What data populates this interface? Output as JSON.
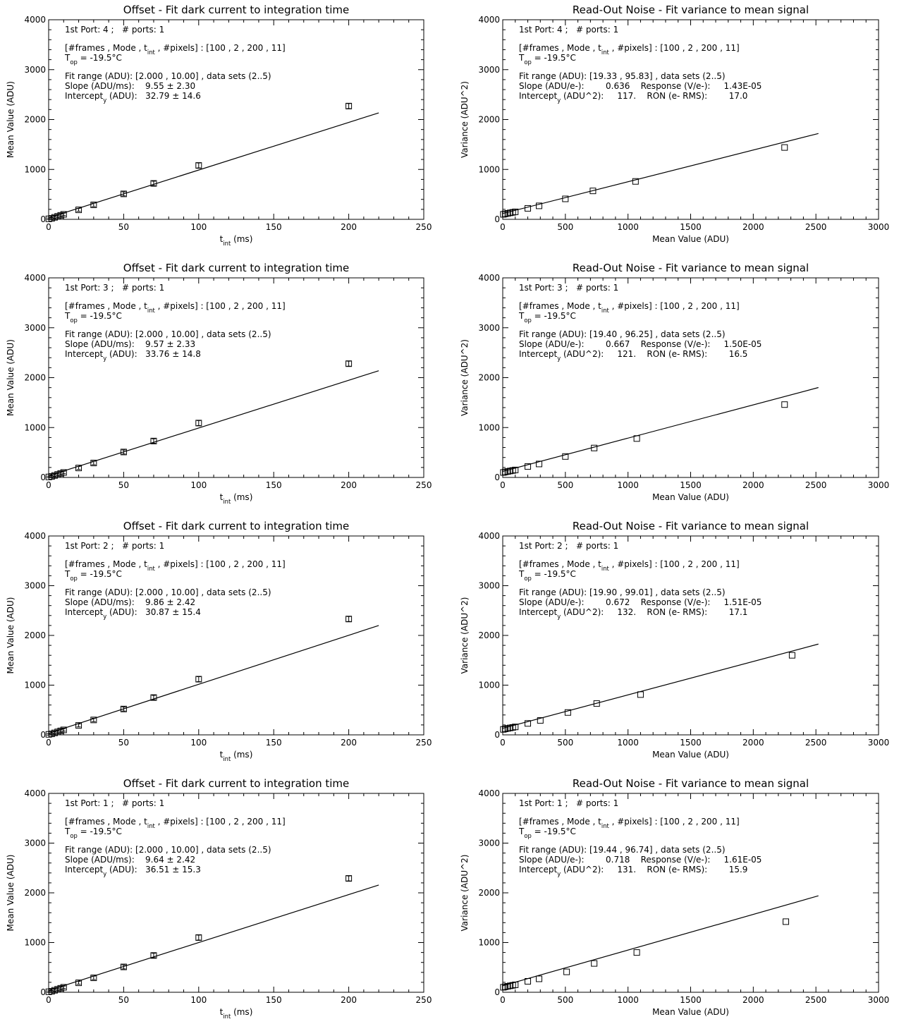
{
  "chart_data": [
    {
      "type": "scatter",
      "title": "Offset - Fit dark current to integration time",
      "xlabel": "t_int (ms)",
      "ylabel": "Mean Value (ADU)",
      "xlim": [
        0,
        250
      ],
      "ylim": [
        0,
        4000
      ],
      "xticks": [
        "0",
        "50",
        "100",
        "150",
        "200",
        "250"
      ],
      "yticks": [
        "0",
        "1000",
        "2000",
        "3000",
        "4000"
      ],
      "annotations": [
        "1st Port: 4 ;   # ports: 1",
        "[#frames , Mode , t_int , #pixels] : [100 , 2 , 200 , 11]",
        "T_op = -19.5°C",
        "Fit range (ADU): [2.000 , 10.00] , data sets (2..5)",
        "Slope (ADU/ms):    9.55 ± 2.30",
        "Intercept_y (ADU):   32.79 ± 14.6"
      ],
      "series": [
        {
          "x": [
            0.1,
            2,
            4,
            6,
            8,
            10,
            20,
            30,
            50,
            70,
            100,
            200
          ],
          "y": [
            10,
            20,
            40,
            60,
            80,
            100,
            190,
            290,
            510,
            720,
            1080,
            2270
          ],
          "error": [
            15,
            15,
            20,
            20,
            25,
            25,
            30,
            35,
            40,
            45,
            50,
            50
          ],
          "marker": "square"
        },
        {
          "type": "line",
          "x": [
            0,
            220
          ],
          "y": [
            32.79,
            2133.8
          ]
        }
      ]
    },
    {
      "type": "scatter",
      "title": "Read-Out Noise - Fit variance to mean signal",
      "xlabel": "Mean Value (ADU)",
      "ylabel": "Variance (ADU^2)",
      "xlim": [
        0,
        3000
      ],
      "ylim": [
        0,
        4000
      ],
      "xticks": [
        "0",
        "500",
        "1000",
        "1500",
        "2000",
        "2500",
        "3000"
      ],
      "yticks": [
        "0",
        "1000",
        "2000",
        "3000",
        "4000"
      ],
      "annotations": [
        "1st Port: 4 ;   # ports: 1",
        "[#frames , Mode , t_int , #pixels] : [100 , 2 , 200 , 11]",
        "T_op = -19.5°C",
        "Fit range (ADU): [19.33 , 95.83] , data sets (2..5)",
        "Slope (ADU/e-):        0.636    Response (V/e-):     1.43E-05",
        "Intercept_y (ADU^2):     117.    RON (e- RMS):        17.0"
      ],
      "series": [
        {
          "x": [
            5,
            20,
            40,
            60,
            80,
            100,
            200,
            290,
            500,
            720,
            1060,
            2250
          ],
          "y": [
            100,
            110,
            120,
            130,
            140,
            150,
            220,
            270,
            410,
            570,
            760,
            1440
          ],
          "marker": "square"
        },
        {
          "type": "line",
          "x": [
            0,
            2520
          ],
          "y": [
            117,
            1720
          ]
        }
      ]
    },
    {
      "type": "scatter",
      "title": "Offset - Fit dark current to integration time",
      "xlabel": "t_int (ms)",
      "ylabel": "Mean Value (ADU)",
      "xlim": [
        0,
        250
      ],
      "ylim": [
        0,
        4000
      ],
      "xticks": [
        "0",
        "50",
        "100",
        "150",
        "200",
        "250"
      ],
      "yticks": [
        "0",
        "1000",
        "2000",
        "3000",
        "4000"
      ],
      "annotations": [
        "1st Port: 3 ;   # ports: 1",
        "[#frames , Mode , t_int , #pixels] : [100 , 2 , 200 , 11]",
        "T_op = -19.5°C",
        "Fit range (ADU): [2.000 , 10.00] , data sets (2..5)",
        "Slope (ADU/ms):    9.57 ± 2.33",
        "Intercept_y (ADU):   33.76 ± 14.8"
      ],
      "series": [
        {
          "x": [
            0.1,
            2,
            4,
            6,
            8,
            10,
            20,
            30,
            50,
            70,
            100,
            200
          ],
          "y": [
            10,
            20,
            40,
            60,
            80,
            100,
            190,
            290,
            510,
            730,
            1090,
            2280
          ],
          "error": [
            15,
            15,
            20,
            20,
            25,
            25,
            30,
            35,
            40,
            45,
            50,
            50
          ],
          "marker": "square"
        },
        {
          "type": "line",
          "x": [
            0,
            220
          ],
          "y": [
            33.76,
            2139.2
          ]
        }
      ]
    },
    {
      "type": "scatter",
      "title": "Read-Out Noise - Fit variance to mean signal",
      "xlabel": "Mean Value (ADU)",
      "ylabel": "Variance (ADU^2)",
      "xlim": [
        0,
        3000
      ],
      "ylim": [
        0,
        4000
      ],
      "xticks": [
        "0",
        "500",
        "1000",
        "1500",
        "2000",
        "2500",
        "3000"
      ],
      "yticks": [
        "0",
        "1000",
        "2000",
        "3000",
        "4000"
      ],
      "annotations": [
        "1st Port: 3 ;   # ports: 1",
        "[#frames , Mode , t_int , #pixels] : [100 , 2 , 200 , 11]",
        "T_op = -19.5°C",
        "Fit range (ADU): [19.40 , 96.25] , data sets (2..5)",
        "Slope (ADU/e-):        0.667    Response (V/e-):     1.50E-05",
        "Intercept_y (ADU^2):     121.    RON (e- RMS):        16.5"
      ],
      "series": [
        {
          "x": [
            5,
            20,
            40,
            60,
            80,
            100,
            200,
            290,
            500,
            730,
            1070,
            2250
          ],
          "y": [
            100,
            110,
            120,
            130,
            140,
            150,
            220,
            270,
            420,
            590,
            780,
            1460
          ],
          "marker": "square"
        },
        {
          "type": "line",
          "x": [
            0,
            2520
          ],
          "y": [
            121,
            1802
          ]
        }
      ]
    },
    {
      "type": "scatter",
      "title": "Offset - Fit dark current to integration time",
      "xlabel": "t_int (ms)",
      "ylabel": "Mean Value (ADU)",
      "xlim": [
        0,
        250
      ],
      "ylim": [
        0,
        4000
      ],
      "xticks": [
        "0",
        "50",
        "100",
        "150",
        "200",
        "250"
      ],
      "yticks": [
        "0",
        "1000",
        "2000",
        "3000",
        "4000"
      ],
      "annotations": [
        "1st Port: 2 ;   # ports: 1",
        "[#frames , Mode , t_int , #pixels] : [100 , 2 , 200 , 11]",
        "T_op = -19.5°C",
        "Fit range (ADU): [2.000 , 10.00] , data sets (2..5)",
        "Slope (ADU/ms):    9.86 ± 2.42",
        "Intercept_y (ADU):   30.87 ± 15.4"
      ],
      "series": [
        {
          "x": [
            0.1,
            2,
            4,
            6,
            8,
            10,
            20,
            30,
            50,
            70,
            100,
            200
          ],
          "y": [
            10,
            20,
            40,
            60,
            80,
            100,
            190,
            300,
            520,
            750,
            1120,
            2330
          ],
          "error": [
            15,
            15,
            20,
            20,
            25,
            25,
            30,
            35,
            40,
            45,
            50,
            50
          ],
          "marker": "square"
        },
        {
          "type": "line",
          "x": [
            0,
            220
          ],
          "y": [
            30.87,
            2200
          ]
        }
      ]
    },
    {
      "type": "scatter",
      "title": "Read-Out Noise - Fit variance to mean signal",
      "xlabel": "Mean Value (ADU)",
      "ylabel": "Variance (ADU^2)",
      "xlim": [
        0,
        3000
      ],
      "ylim": [
        0,
        4000
      ],
      "xticks": [
        "0",
        "500",
        "1000",
        "1500",
        "2000",
        "2500",
        "3000"
      ],
      "yticks": [
        "0",
        "1000",
        "2000",
        "3000",
        "4000"
      ],
      "annotations": [
        "1st Port: 2 ;   # ports: 1",
        "[#frames , Mode , t_int , #pixels] : [100 , 2 , 200 , 11]",
        "T_op = -19.5°C",
        "Fit range (ADU): [19.90 , 99.01] , data sets (2..5)",
        "Slope (ADU/e-):        0.672    Response (V/e-):     1.51E-05",
        "Intercept_y (ADU^2):     132.    RON (e- RMS):        17.1"
      ],
      "series": [
        {
          "x": [
            5,
            20,
            40,
            60,
            80,
            100,
            200,
            300,
            520,
            750,
            1100,
            2310
          ],
          "y": [
            110,
            120,
            130,
            140,
            150,
            160,
            230,
            290,
            450,
            630,
            810,
            1600
          ],
          "marker": "square"
        },
        {
          "type": "line",
          "x": [
            0,
            2520
          ],
          "y": [
            132,
            1826
          ]
        }
      ]
    },
    {
      "type": "scatter",
      "title": "Offset - Fit dark current to integration time",
      "xlabel": "t_int (ms)",
      "ylabel": "Mean Value (ADU)",
      "xlim": [
        0,
        250
      ],
      "ylim": [
        0,
        4000
      ],
      "xticks": [
        "0",
        "50",
        "100",
        "150",
        "200",
        "250"
      ],
      "yticks": [
        "0",
        "1000",
        "2000",
        "3000",
        "4000"
      ],
      "annotations": [
        "1st Port: 1 ;   # ports: 1",
        "[#frames , Mode , t_int , #pixels] : [100 , 2 , 200 , 11]",
        "T_op = -19.5°C",
        "Fit range (ADU): [2.000 , 10.00] , data sets (2..5)",
        "Slope (ADU/ms):    9.64 ± 2.42",
        "Intercept_y (ADU):   36.51 ± 15.3"
      ],
      "series": [
        {
          "x": [
            0.1,
            2,
            4,
            6,
            8,
            10,
            20,
            30,
            50,
            70,
            100,
            200
          ],
          "y": [
            10,
            20,
            40,
            60,
            80,
            100,
            190,
            290,
            510,
            740,
            1100,
            2290
          ],
          "error": [
            15,
            15,
            20,
            20,
            25,
            25,
            30,
            35,
            40,
            45,
            50,
            50
          ],
          "marker": "square"
        },
        {
          "type": "line",
          "x": [
            0,
            220
          ],
          "y": [
            36.51,
            2157.3
          ]
        }
      ]
    },
    {
      "type": "scatter",
      "title": "Read-Out Noise - Fit variance to mean signal",
      "xlabel": "Mean Value (ADU)",
      "ylabel": "Variance (ADU^2)",
      "xlim": [
        0,
        3000
      ],
      "ylim": [
        0,
        4000
      ],
      "xticks": [
        "0",
        "500",
        "1000",
        "1500",
        "2000",
        "2500",
        "3000"
      ],
      "yticks": [
        "0",
        "1000",
        "2000",
        "3000",
        "4000"
      ],
      "annotations": [
        "1st Port: 1 ;   # ports: 1",
        "[#frames , Mode , t_int , #pixels] : [100 , 2 , 200 , 11]",
        "T_op = -19.5°C",
        "Fit range (ADU): [19.44 , 96.74] , data sets (2..5)",
        "Slope (ADU/e-):        0.718    Response (V/e-):     1.61E-05",
        "Intercept_y (ADU^2):     131.    RON (e- RMS):        15.9"
      ],
      "series": [
        {
          "x": [
            5,
            20,
            40,
            60,
            80,
            100,
            200,
            290,
            510,
            730,
            1070,
            2260
          ],
          "y": [
            100,
            110,
            120,
            130,
            140,
            150,
            220,
            270,
            410,
            580,
            800,
            1420
          ],
          "marker": "square"
        },
        {
          "type": "line",
          "x": [
            0,
            2520
          ],
          "y": [
            131,
            1940
          ]
        }
      ]
    }
  ]
}
